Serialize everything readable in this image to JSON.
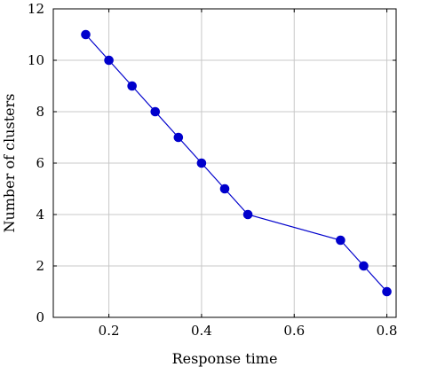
{
  "chart_data": {
    "type": "line",
    "title": "",
    "xlabel": "Response time",
    "ylabel": "Number of clusters",
    "xlim": [
      0.08,
      0.82
    ],
    "ylim": [
      0,
      12
    ],
    "x_ticks": [
      0.2,
      0.4,
      0.6,
      0.8
    ],
    "x_tick_labels": [
      "0.2",
      "0.4",
      "0.6",
      "0.8"
    ],
    "y_ticks": [
      0,
      2,
      4,
      6,
      8,
      10,
      12
    ],
    "y_tick_labels": [
      "0",
      "2",
      "4",
      "6",
      "8",
      "10",
      "12"
    ],
    "grid": true,
    "series": [
      {
        "color": "#0000cc",
        "marker": "circle",
        "x": [
          0.15,
          0.2,
          0.25,
          0.3,
          0.35,
          0.4,
          0.45,
          0.5,
          0.7,
          0.75,
          0.8
        ],
        "y": [
          11,
          10,
          9,
          8,
          7,
          6,
          5,
          4,
          3,
          2,
          1
        ]
      }
    ]
  }
}
